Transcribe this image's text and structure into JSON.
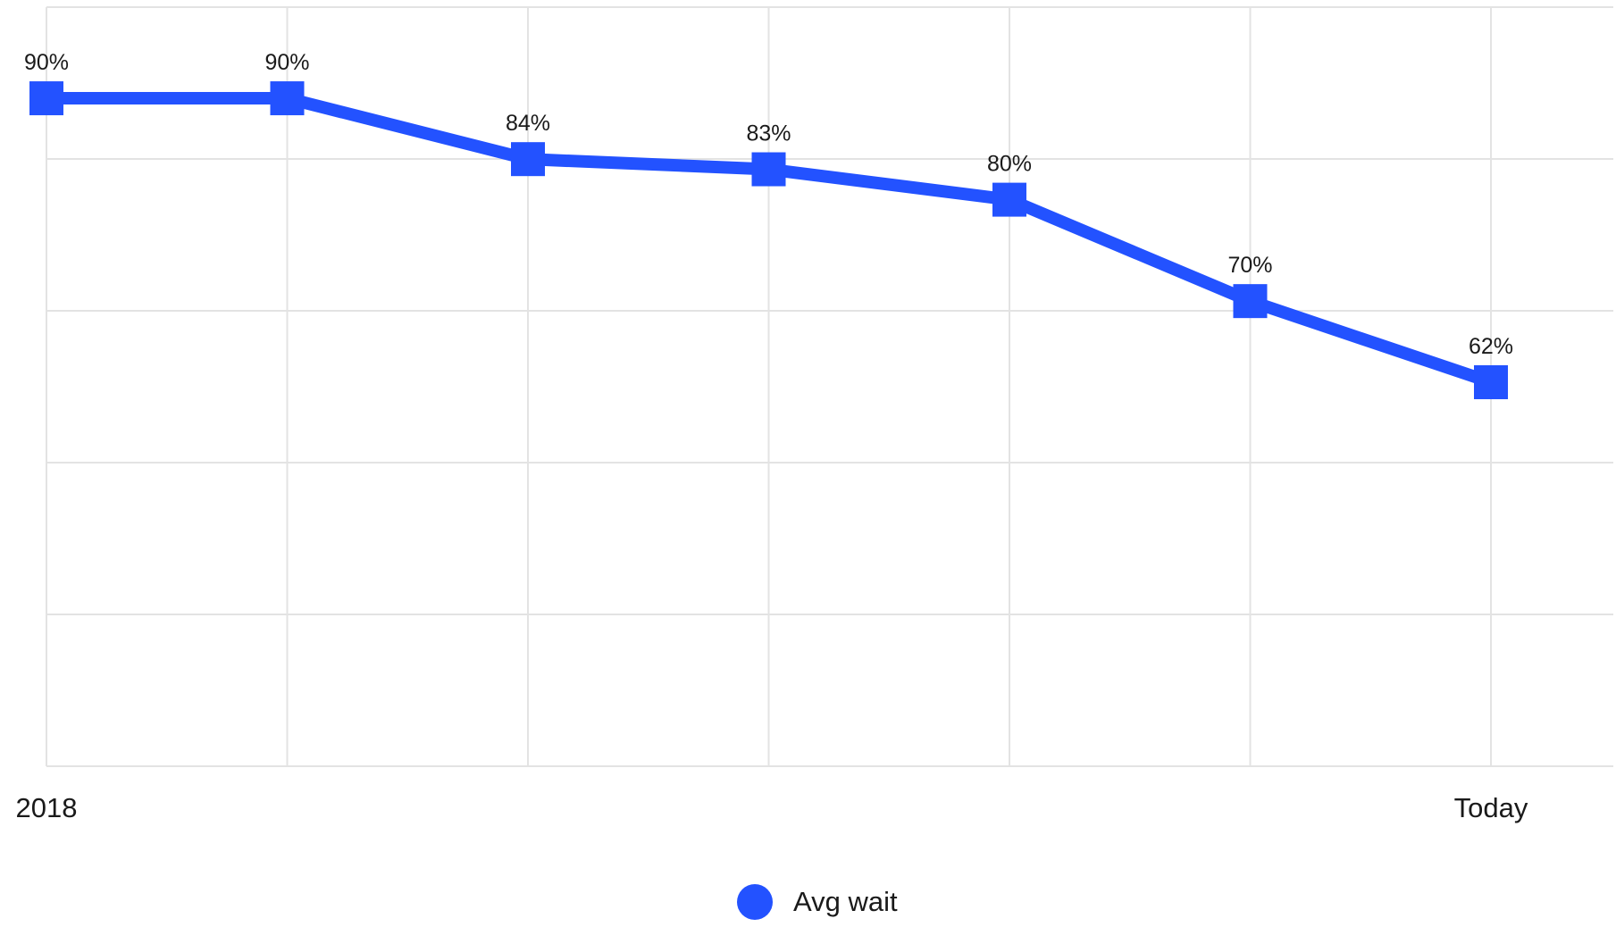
{
  "chart_data": {
    "type": "line",
    "title": "",
    "xlabel": "",
    "ylabel": "",
    "x_tick_labels": [
      "2018",
      "",
      "",
      "",
      "",
      "",
      "Today"
    ],
    "ylim": [
      0,
      100
    ],
    "grid": true,
    "legend": "bottom-center",
    "series": [
      {
        "name": "Avg wait",
        "color": "#2352ff",
        "marker": "square",
        "values": [
          90,
          90,
          84,
          83,
          80,
          70,
          62
        ],
        "data_labels": [
          "90%",
          "90%",
          "84%",
          "83%",
          "80%",
          "70%",
          "62%"
        ]
      }
    ]
  },
  "colors": {
    "grid": "#e3e3e3",
    "text": "#1a1a1a",
    "series": "#2352ff"
  }
}
